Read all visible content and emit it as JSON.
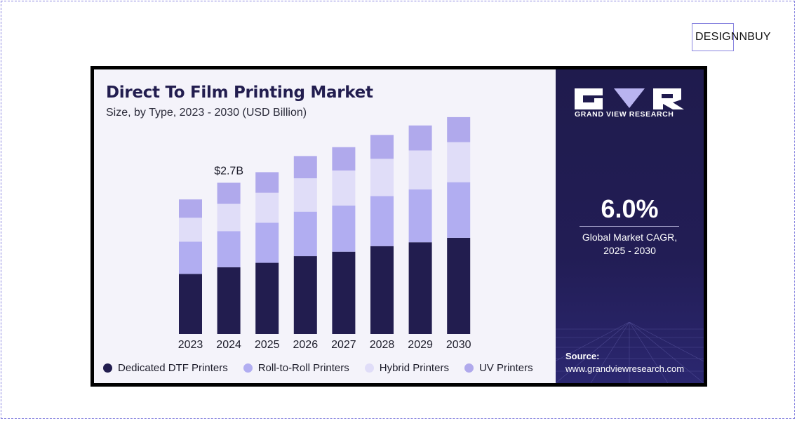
{
  "brand": {
    "label": "DESIGNNBUY"
  },
  "colors": {
    "dedicated": "#221d4f",
    "roll": "#b1adf1",
    "hybrid": "#e0ddf8",
    "uv": "#b0a9ec",
    "panel_bg": "#f4f3fa",
    "side_bg": "#221d55"
  },
  "side": {
    "logo_icon": "gvr-logo-icon",
    "logo_text": "GRAND VIEW RESEARCH",
    "cagr_value": "6.0%",
    "cagr_label_line1": "Global Market CAGR,",
    "cagr_label_line2": "2025 - 2030",
    "source_label": "Source:",
    "source_url": "www.grandviewresearch.com"
  },
  "chart_data": {
    "type": "bar",
    "stacked": true,
    "title": "Direct To Film Printing Market",
    "subtitle": "Size, by Type, 2023 - 2030 (USD Billion)",
    "categories": [
      "2023",
      "2024",
      "2025",
      "2026",
      "2027",
      "2028",
      "2029",
      "2030"
    ],
    "series": [
      {
        "name": "Dedicated DTF Printers",
        "color": "#221d4f",
        "values": [
          1.08,
          1.2,
          1.28,
          1.4,
          1.48,
          1.58,
          1.65,
          1.73
        ]
      },
      {
        "name": "Roll-to-Roll Printers",
        "color": "#b1adf1",
        "values": [
          0.58,
          0.65,
          0.72,
          0.8,
          0.83,
          0.9,
          0.95,
          1.0
        ]
      },
      {
        "name": "Hybrid Printers",
        "color": "#e0ddf8",
        "values": [
          0.43,
          0.49,
          0.54,
          0.6,
          0.63,
          0.67,
          0.7,
          0.72
        ]
      },
      {
        "name": "UV Printers",
        "color": "#b0a9ec",
        "values": [
          0.33,
          0.38,
          0.37,
          0.4,
          0.42,
          0.43,
          0.45,
          0.45
        ]
      }
    ],
    "annotations": [
      {
        "category": "2024",
        "text": "$2.7B"
      }
    ],
    "ylim": [
      0,
      4.0
    ],
    "grid": false,
    "legend": "bottom"
  }
}
